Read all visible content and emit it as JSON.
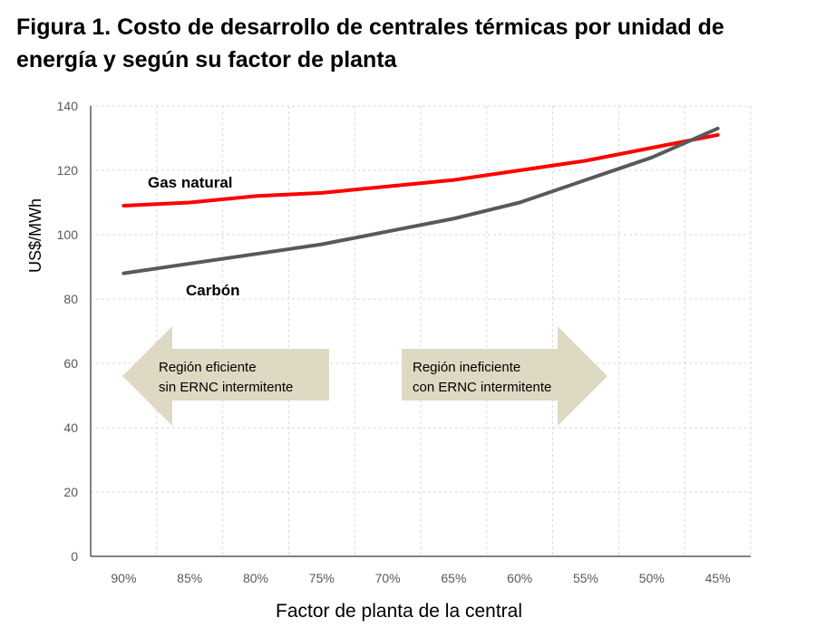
{
  "chart_data": {
    "type": "line",
    "title": "Figura 1. Costo de desarrollo de centrales térmicas por unidad de energía y según su factor de planta",
    "xlabel": "Factor de planta de la central",
    "ylabel": "US$/MWh",
    "categories": [
      "90%",
      "85%",
      "80%",
      "75%",
      "70%",
      "65%",
      "60%",
      "55%",
      "50%",
      "45%"
    ],
    "ylim": [
      0,
      140
    ],
    "yticks": [
      0,
      20,
      40,
      60,
      80,
      100,
      120,
      140
    ],
    "grid": true,
    "series": [
      {
        "name": "Gas natural",
        "color": "#ff0000",
        "values": [
          109,
          110,
          112,
          113,
          115,
          117,
          120,
          123,
          127,
          131
        ]
      },
      {
        "name": "Carbón",
        "color": "#595959",
        "values": [
          88,
          91,
          94,
          97,
          101,
          105,
          110,
          117,
          124,
          133
        ]
      }
    ],
    "annotations": [
      {
        "direction": "left",
        "lines": [
          "Región  eficiente",
          "sin ERNC intermitente"
        ],
        "color": "#ddd9c3"
      },
      {
        "direction": "right",
        "lines": [
          "Región ineficiente",
          "con ERNC intermitente"
        ],
        "color": "#ddd9c3"
      }
    ]
  }
}
